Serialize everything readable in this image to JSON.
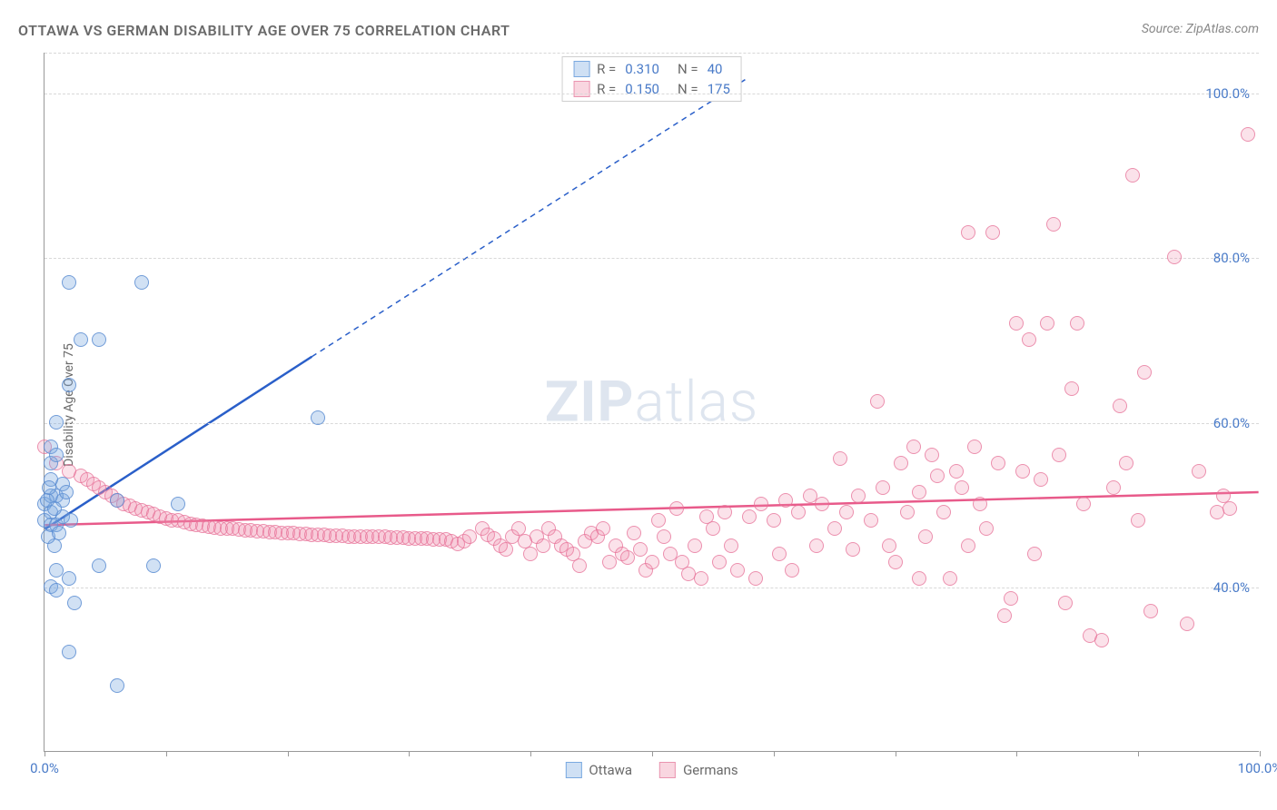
{
  "chart": {
    "type": "scatter",
    "title": "OTTAWA VS GERMAN DISABILITY AGE OVER 75 CORRELATION CHART",
    "source": "Source: ZipAtlas.com",
    "y_axis_label": "Disability Age Over 75",
    "watermark": {
      "part1": "ZIP",
      "part2": "atlas"
    },
    "background_color": "#ffffff",
    "grid_color": "#d8d8d8",
    "axis_color": "#999999",
    "label_color_gray": "#6a6a6a",
    "label_color_blue": "#4a7bc8",
    "title_fontsize": 16,
    "tick_fontsize": 15,
    "marker_radius": 8,
    "xlim": [
      0,
      100
    ],
    "ylim": [
      20,
      105
    ],
    "y_gridlines": [
      40,
      60,
      80,
      100,
      105
    ],
    "y_tick_labels": [
      "40.0%",
      "60.0%",
      "80.0%",
      "100.0%"
    ],
    "y_tick_values": [
      40,
      60,
      80,
      100
    ],
    "x_ticks": [
      0,
      10,
      20,
      30,
      40,
      50,
      60,
      70,
      80,
      90,
      100
    ],
    "x_tick_labels": {
      "0": "0.0%",
      "100": "100.0%"
    },
    "series": {
      "ottawa": {
        "label": "Ottawa",
        "color_fill": "rgba(122,169,224,0.35)",
        "color_stroke": "rgba(90,140,210,0.8)",
        "color_swatch_fill": "#cfe0f4",
        "color_swatch_border": "#7aa9e0",
        "r_value": "0.310",
        "n_value": "40",
        "trend_line": {
          "color": "#2a5fc9",
          "width": 2.5,
          "solid_from": [
            0,
            47
          ],
          "solid_to": [
            22,
            68
          ],
          "dashed_to": [
            58,
            102
          ]
        },
        "points": [
          [
            2,
            77
          ],
          [
            8,
            77
          ],
          [
            3,
            70
          ],
          [
            4.5,
            70
          ],
          [
            2,
            64.5
          ],
          [
            1,
            60
          ],
          [
            0.5,
            55
          ],
          [
            0.5,
            57
          ],
          [
            1,
            56
          ],
          [
            0,
            50
          ],
          [
            0.5,
            51
          ],
          [
            0.5,
            49
          ],
          [
            1,
            51
          ],
          [
            1.5,
            50.5
          ],
          [
            0,
            48
          ],
          [
            0.5,
            47.5
          ],
          [
            1,
            47.5
          ],
          [
            1.5,
            48.5
          ],
          [
            0.8,
            49.5
          ],
          [
            6,
            50.5
          ],
          [
            11,
            50
          ],
          [
            0.5,
            53
          ],
          [
            1.5,
            52.5
          ],
          [
            22.5,
            60.5
          ],
          [
            4.5,
            42.5
          ],
          [
            9,
            42.5
          ],
          [
            1,
            42
          ],
          [
            2,
            41
          ],
          [
            0.5,
            40
          ],
          [
            1,
            39.5
          ],
          [
            2.5,
            38
          ],
          [
            0.8,
            45
          ],
          [
            2,
            32
          ],
          [
            6,
            28
          ],
          [
            0.3,
            46
          ],
          [
            1.2,
            46.5
          ],
          [
            2.2,
            48
          ],
          [
            0.2,
            50.5
          ],
          [
            1.8,
            51.5
          ],
          [
            0.4,
            52
          ]
        ]
      },
      "germans": {
        "label": "Germans",
        "color_fill": "rgba(240,140,170,0.25)",
        "color_stroke": "rgba(230,110,150,0.7)",
        "color_swatch_fill": "#f9d6e0",
        "color_swatch_border": "#ea94b0",
        "r_value": "0.150",
        "n_value": "175",
        "trend_line": {
          "color": "#e85a8a",
          "width": 2.5,
          "solid_from": [
            0,
            47.5
          ],
          "solid_to": [
            100,
            51.5
          ]
        },
        "points": [
          [
            0,
            57
          ],
          [
            1,
            55
          ],
          [
            2,
            54
          ],
          [
            3,
            53.5
          ],
          [
            3.5,
            53
          ],
          [
            4,
            52.5
          ],
          [
            4.5,
            52
          ],
          [
            5,
            51.5
          ],
          [
            5.5,
            51
          ],
          [
            6,
            50.5
          ],
          [
            6.5,
            50
          ],
          [
            7,
            49.8
          ],
          [
            7.5,
            49.5
          ],
          [
            8,
            49.3
          ],
          [
            8.5,
            49
          ],
          [
            9,
            48.8
          ],
          [
            9.5,
            48.5
          ],
          [
            10,
            48.3
          ],
          [
            10.5,
            48
          ],
          [
            11,
            48
          ],
          [
            11.5,
            47.8
          ],
          [
            12,
            47.6
          ],
          [
            12.5,
            47.5
          ],
          [
            13,
            47.4
          ],
          [
            13.5,
            47.3
          ],
          [
            14,
            47.2
          ],
          [
            14.5,
            47.1
          ],
          [
            15,
            47
          ],
          [
            15.5,
            47
          ],
          [
            16,
            46.9
          ],
          [
            16.5,
            46.8
          ],
          [
            17,
            46.8
          ],
          [
            17.5,
            46.7
          ],
          [
            18,
            46.7
          ],
          [
            18.5,
            46.6
          ],
          [
            19,
            46.6
          ],
          [
            19.5,
            46.5
          ],
          [
            20,
            46.5
          ],
          [
            20.5,
            46.5
          ],
          [
            21,
            46.4
          ],
          [
            21.5,
            46.4
          ],
          [
            22,
            46.3
          ],
          [
            22.5,
            46.3
          ],
          [
            23,
            46.3
          ],
          [
            23.5,
            46.2
          ],
          [
            24,
            46.2
          ],
          [
            24.5,
            46.2
          ],
          [
            25,
            46.1
          ],
          [
            25.5,
            46.1
          ],
          [
            26,
            46.1
          ],
          [
            26.5,
            46
          ],
          [
            27,
            46
          ],
          [
            27.5,
            46
          ],
          [
            28,
            46
          ],
          [
            28.5,
            45.9
          ],
          [
            29,
            45.9
          ],
          [
            29.5,
            45.9
          ],
          [
            30,
            45.8
          ],
          [
            30.5,
            45.8
          ],
          [
            31,
            45.8
          ],
          [
            31.5,
            45.8
          ],
          [
            32,
            45.7
          ],
          [
            32.5,
            45.7
          ],
          [
            33,
            45.7
          ],
          [
            33.5,
            45.5
          ],
          [
            34,
            45.2
          ],
          [
            34.5,
            45.5
          ],
          [
            35,
            46
          ],
          [
            36,
            47
          ],
          [
            36.5,
            46.3
          ],
          [
            37,
            45.8
          ],
          [
            37.5,
            45
          ],
          [
            38,
            44.5
          ],
          [
            38.5,
            46
          ],
          [
            39,
            47
          ],
          [
            39.5,
            45.5
          ],
          [
            40,
            44
          ],
          [
            40.5,
            46
          ],
          [
            41,
            45
          ],
          [
            41.5,
            47
          ],
          [
            42,
            46
          ],
          [
            42.5,
            45
          ],
          [
            43,
            44.5
          ],
          [
            43.5,
            44
          ],
          [
            44,
            42.5
          ],
          [
            44.5,
            45.5
          ],
          [
            45,
            46.5
          ],
          [
            45.5,
            46
          ],
          [
            46,
            47
          ],
          [
            46.5,
            43
          ],
          [
            47,
            45
          ],
          [
            47.5,
            44
          ],
          [
            48,
            43.5
          ],
          [
            48.5,
            46.5
          ],
          [
            49,
            44.5
          ],
          [
            49.5,
            42
          ],
          [
            50,
            43
          ],
          [
            50.5,
            48
          ],
          [
            51,
            46
          ],
          [
            51.5,
            44
          ],
          [
            52,
            49.5
          ],
          [
            52.5,
            43
          ],
          [
            53,
            41.5
          ],
          [
            53.5,
            45
          ],
          [
            54,
            41
          ],
          [
            54.5,
            48.5
          ],
          [
            55,
            47
          ],
          [
            55.5,
            43
          ],
          [
            56,
            49
          ],
          [
            56.5,
            45
          ],
          [
            57,
            42
          ],
          [
            58,
            48.5
          ],
          [
            58.5,
            41
          ],
          [
            59,
            50
          ],
          [
            60,
            48
          ],
          [
            60.5,
            44
          ],
          [
            61,
            50.5
          ],
          [
            61.5,
            42
          ],
          [
            62,
            49
          ],
          [
            63,
            51
          ],
          [
            63.5,
            45
          ],
          [
            64,
            50
          ],
          [
            65,
            47
          ],
          [
            65.5,
            55.5
          ],
          [
            66,
            49
          ],
          [
            66.5,
            44.5
          ],
          [
            67,
            51
          ],
          [
            68,
            48
          ],
          [
            68.5,
            62.5
          ],
          [
            69,
            52
          ],
          [
            69.5,
            45
          ],
          [
            70,
            43
          ],
          [
            70.5,
            55
          ],
          [
            71,
            49
          ],
          [
            71.5,
            57
          ],
          [
            72,
            51.5
          ],
          [
            72.5,
            46
          ],
          [
            73,
            56
          ],
          [
            73.5,
            53.5
          ],
          [
            74,
            49
          ],
          [
            74.5,
            41
          ],
          [
            75,
            54
          ],
          [
            75.5,
            52
          ],
          [
            76,
            45
          ],
          [
            76.5,
            57
          ],
          [
            77,
            50
          ],
          [
            77.5,
            47
          ],
          [
            78,
            83
          ],
          [
            78.5,
            55
          ],
          [
            79,
            36.5
          ],
          [
            79.5,
            38.5
          ],
          [
            80,
            72
          ],
          [
            80.5,
            54
          ],
          [
            81,
            70
          ],
          [
            81.5,
            44
          ],
          [
            82,
            53
          ],
          [
            82.5,
            72
          ],
          [
            83,
            84
          ],
          [
            83.5,
            56
          ],
          [
            84,
            38
          ],
          [
            84.5,
            64
          ],
          [
            85,
            72
          ],
          [
            85.5,
            50
          ],
          [
            86,
            34
          ],
          [
            87,
            33.5
          ],
          [
            88,
            52
          ],
          [
            88.5,
            62
          ],
          [
            89,
            55
          ],
          [
            89.5,
            90
          ],
          [
            90,
            48
          ],
          [
            90.5,
            66
          ],
          [
            91,
            37
          ],
          [
            93,
            80
          ],
          [
            94,
            35.5
          ],
          [
            95,
            54
          ],
          [
            96.5,
            49
          ],
          [
            97,
            51
          ],
          [
            97.5,
            49.5
          ],
          [
            99,
            95
          ],
          [
            72,
            41
          ],
          [
            76,
            83
          ]
        ]
      }
    },
    "legend_top": {
      "r_label": "R =",
      "n_label": "N ="
    },
    "legend_bottom_labels": {
      "ottawa": "Ottawa",
      "germans": "Germans"
    }
  }
}
